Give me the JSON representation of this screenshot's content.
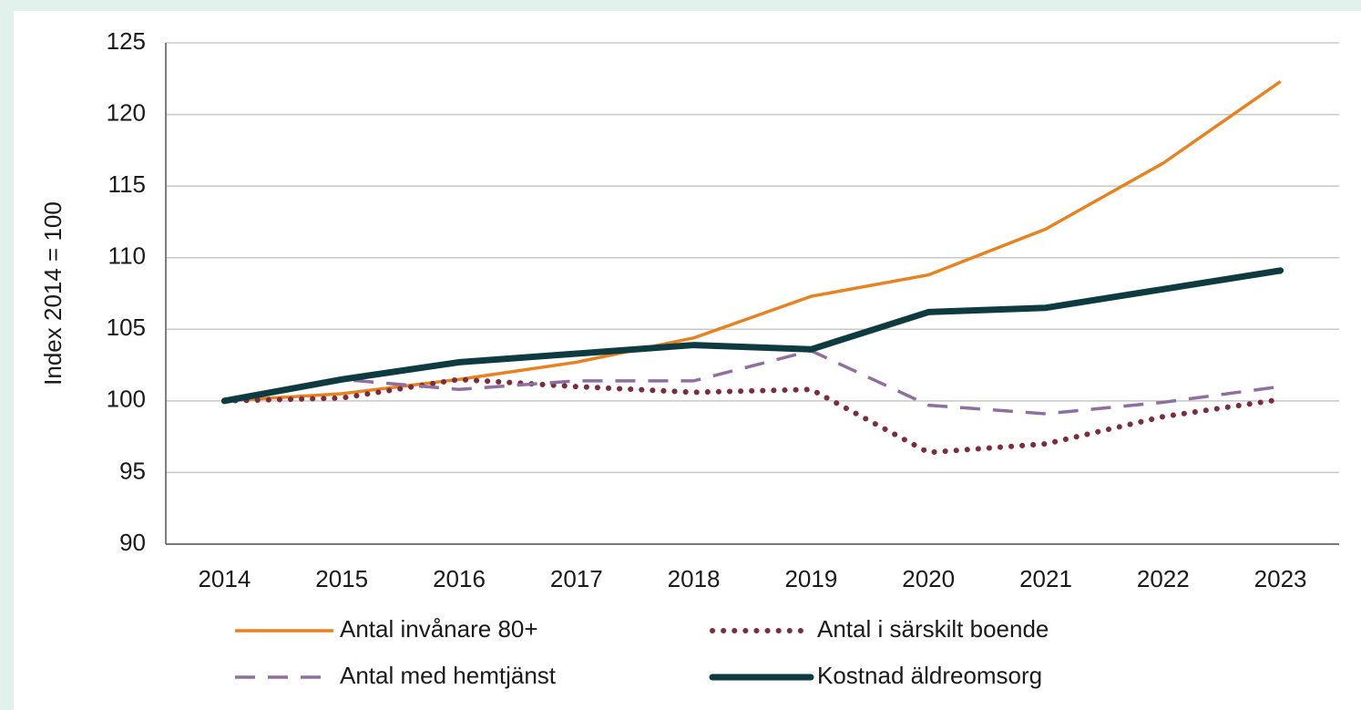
{
  "chart_data": {
    "type": "line",
    "y_label": "Index 2014 = 100",
    "categories": [
      "2014",
      "2015",
      "2016",
      "2017",
      "2018",
      "2019",
      "2020",
      "2021",
      "2022",
      "2023"
    ],
    "series": [
      {
        "name": "Antal invånare 80+",
        "color": "#e8821e",
        "style": "solid",
        "values": [
          100,
          100.5,
          101.5,
          102.7,
          104.4,
          107.3,
          108.8,
          112,
          116.6,
          122.3
        ]
      },
      {
        "name": "Antal i särskilt boende",
        "color": "#7b2d3f",
        "style": "dotted",
        "values": [
          100,
          100.2,
          101.5,
          101,
          100.6,
          100.8,
          96.4,
          97,
          98.9,
          100.1
        ]
      },
      {
        "name": "Antal med hemtjänst",
        "color": "#8e6fa0",
        "style": "dashed",
        "values": [
          100,
          101.5,
          100.8,
          101.4,
          101.4,
          103.5,
          99.7,
          99.1,
          99.9,
          101
        ]
      },
      {
        "name": "Kostnad äldreomsorg",
        "color": "#0d3b3f",
        "style": "thick",
        "values": [
          100,
          101.5,
          102.7,
          103.3,
          103.9,
          103.6,
          106.2,
          106.5,
          107.8,
          109.1
        ]
      }
    ],
    "ylim": [
      90,
      125
    ],
    "yticks": [
      90,
      95,
      100,
      105,
      110,
      115,
      120,
      125
    ],
    "grid": true,
    "legend": "bottom"
  }
}
